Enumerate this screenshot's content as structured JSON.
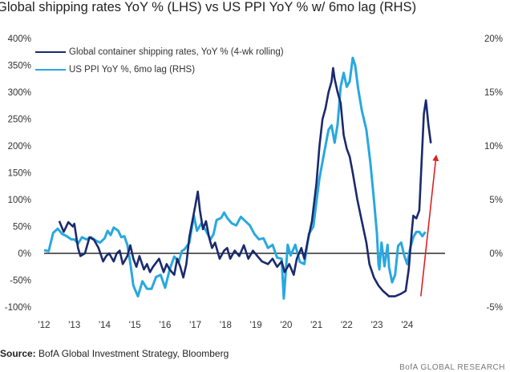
{
  "title": "Global shipping rates YoY % (LHS) vs US PPI YoY % w/ 6mo lag (RHS)",
  "source": {
    "label": "Source:",
    "text": " BofA Global Investment Strategy, Bloomberg"
  },
  "footer": "BofA GLOBAL RESEARCH",
  "colors": {
    "shipping": "#1a2a6c",
    "ppi": "#29a8df",
    "arrow": "#e02020",
    "zero_line": "#000000"
  },
  "chart_data": {
    "type": "line",
    "title": "Global shipping rates YoY % (LHS) vs US PPI YoY % w/ 6mo lag (RHS)",
    "xlabel": "",
    "ylabel_left": "",
    "ylabel_right": "",
    "x_ticks": [
      "'12",
      "'13",
      "'14",
      "'15",
      "'16",
      "'17",
      "'18",
      "'19",
      "'20",
      "'21",
      "'22",
      "'23",
      "'24"
    ],
    "xlim": [
      2012,
      2025.25
    ],
    "y_left_ticks": [
      "400%",
      "350%",
      "300%",
      "250%",
      "200%",
      "150%",
      "100%",
      "50%",
      "0%",
      "-50%",
      "-100%"
    ],
    "ylim_left": [
      -100,
      400
    ],
    "y_right_ticks": [
      "20%",
      "15%",
      "10%",
      "5%",
      "0%",
      "-5%"
    ],
    "ylim_right": [
      -5,
      20
    ],
    "legend_placement": "top-left",
    "grid": false,
    "series": [
      {
        "name": "Global container shipping rates, YoY % (4-wk rolling)",
        "axis": "left",
        "points": [
          [
            2012.5,
            60
          ],
          [
            2012.65,
            40
          ],
          [
            2012.8,
            58
          ],
          [
            2012.95,
            50
          ],
          [
            2013.0,
            55
          ],
          [
            2013.12,
            10
          ],
          [
            2013.2,
            -5
          ],
          [
            2013.35,
            0
          ],
          [
            2013.5,
            30
          ],
          [
            2013.65,
            25
          ],
          [
            2013.8,
            10
          ],
          [
            2013.95,
            -15
          ],
          [
            2014.05,
            -5
          ],
          [
            2014.15,
            0
          ],
          [
            2014.3,
            -15
          ],
          [
            2014.4,
            0
          ],
          [
            2014.5,
            5
          ],
          [
            2014.6,
            -20
          ],
          [
            2014.75,
            -5
          ],
          [
            2014.85,
            15
          ],
          [
            2014.95,
            -10
          ],
          [
            2015.05,
            -25
          ],
          [
            2015.15,
            -5
          ],
          [
            2015.3,
            -30
          ],
          [
            2015.4,
            -20
          ],
          [
            2015.5,
            -35
          ],
          [
            2015.6,
            -25
          ],
          [
            2015.8,
            -10
          ],
          [
            2015.95,
            -35
          ],
          [
            2016.05,
            -20
          ],
          [
            2016.15,
            -30
          ],
          [
            2016.3,
            -40
          ],
          [
            2016.4,
            -10
          ],
          [
            2016.5,
            -25
          ],
          [
            2016.6,
            -45
          ],
          [
            2016.7,
            -20
          ],
          [
            2016.8,
            30
          ],
          [
            2016.9,
            60
          ],
          [
            2017.0,
            90
          ],
          [
            2017.08,
            115
          ],
          [
            2017.15,
            80
          ],
          [
            2017.25,
            45
          ],
          [
            2017.35,
            60
          ],
          [
            2017.45,
            30
          ],
          [
            2017.55,
            10
          ],
          [
            2017.65,
            20
          ],
          [
            2017.8,
            -10
          ],
          [
            2017.95,
            5
          ],
          [
            2018.05,
            10
          ],
          [
            2018.15,
            -10
          ],
          [
            2018.3,
            5
          ],
          [
            2018.45,
            -5
          ],
          [
            2018.6,
            15
          ],
          [
            2018.75,
            -10
          ],
          [
            2018.9,
            5
          ],
          [
            2019.05,
            -5
          ],
          [
            2019.2,
            -15
          ],
          [
            2019.4,
            -20
          ],
          [
            2019.55,
            -10
          ],
          [
            2019.7,
            -25
          ],
          [
            2019.85,
            -15
          ],
          [
            2019.95,
            -35
          ],
          [
            2020.1,
            -20
          ],
          [
            2020.25,
            -40
          ],
          [
            2020.35,
            -10
          ],
          [
            2020.5,
            10
          ],
          [
            2020.6,
            -10
          ],
          [
            2020.7,
            20
          ],
          [
            2020.85,
            60
          ],
          [
            2021.0,
            130
          ],
          [
            2021.1,
            200
          ],
          [
            2021.2,
            250
          ],
          [
            2021.3,
            270
          ],
          [
            2021.4,
            300
          ],
          [
            2021.5,
            320
          ],
          [
            2021.55,
            345
          ],
          [
            2021.6,
            325
          ],
          [
            2021.7,
            300
          ],
          [
            2021.8,
            280
          ],
          [
            2021.9,
            220
          ],
          [
            2022.0,
            195
          ],
          [
            2022.1,
            180
          ],
          [
            2022.2,
            150
          ],
          [
            2022.35,
            100
          ],
          [
            2022.5,
            60
          ],
          [
            2022.65,
            20
          ],
          [
            2022.75,
            -20
          ],
          [
            2022.9,
            -45
          ],
          [
            2023.05,
            -60
          ],
          [
            2023.2,
            -70
          ],
          [
            2023.4,
            -80
          ],
          [
            2023.6,
            -80
          ],
          [
            2023.8,
            -75
          ],
          [
            2023.95,
            -70
          ],
          [
            2024.05,
            -30
          ],
          [
            2024.15,
            40
          ],
          [
            2024.2,
            70
          ],
          [
            2024.3,
            65
          ],
          [
            2024.4,
            80
          ],
          [
            2024.45,
            140
          ],
          [
            2024.55,
            260
          ],
          [
            2024.62,
            285
          ],
          [
            2024.7,
            240
          ],
          [
            2024.78,
            205
          ]
        ]
      },
      {
        "name": "US PPI YoY %, 6mo lag (RHS)",
        "axis": "right",
        "points": [
          [
            2012.0,
            0.3
          ],
          [
            2012.15,
            0.2
          ],
          [
            2012.3,
            1.9
          ],
          [
            2012.45,
            2.3
          ],
          [
            2012.6,
            1.8
          ],
          [
            2012.75,
            1.6
          ],
          [
            2012.9,
            1.3
          ],
          [
            2013.0,
            1.3
          ],
          [
            2013.12,
            0.9
          ],
          [
            2013.25,
            1.5
          ],
          [
            2013.4,
            1.3
          ],
          [
            2013.55,
            1.5
          ],
          [
            2013.7,
            1.2
          ],
          [
            2013.85,
            1.0
          ],
          [
            2014.0,
            1.4
          ],
          [
            2014.1,
            2.1
          ],
          [
            2014.2,
            1.7
          ],
          [
            2014.3,
            2.4
          ],
          [
            2014.45,
            2.1
          ],
          [
            2014.55,
            1.5
          ],
          [
            2014.65,
            1.6
          ],
          [
            2014.75,
            0.8
          ],
          [
            2014.85,
            -0.9
          ],
          [
            2014.95,
            -3.0
          ],
          [
            2015.1,
            -4.0
          ],
          [
            2015.25,
            -2.6
          ],
          [
            2015.4,
            -3.3
          ],
          [
            2015.55,
            -3.3
          ],
          [
            2015.7,
            -2.2
          ],
          [
            2015.85,
            -2.0
          ],
          [
            2016.0,
            -3.2
          ],
          [
            2016.15,
            -1.5
          ],
          [
            2016.3,
            -0.3
          ],
          [
            2016.45,
            -0.8
          ],
          [
            2016.55,
            0.2
          ],
          [
            2016.65,
            0.4
          ],
          [
            2016.8,
            1.0
          ],
          [
            2016.95,
            3.5
          ],
          [
            2017.05,
            2.1
          ],
          [
            2017.2,
            2.8
          ],
          [
            2017.35,
            2.1
          ],
          [
            2017.5,
            1.3
          ],
          [
            2017.6,
            1.8
          ],
          [
            2017.7,
            3.1
          ],
          [
            2017.85,
            3.3
          ],
          [
            2017.95,
            3.8
          ],
          [
            2018.05,
            3.3
          ],
          [
            2018.2,
            2.8
          ],
          [
            2018.35,
            2.6
          ],
          [
            2018.5,
            3.4
          ],
          [
            2018.65,
            3.0
          ],
          [
            2018.8,
            2.6
          ],
          [
            2018.95,
            1.8
          ],
          [
            2019.1,
            1.3
          ],
          [
            2019.25,
            1.4
          ],
          [
            2019.4,
            0.5
          ],
          [
            2019.55,
            0.8
          ],
          [
            2019.7,
            -0.4
          ],
          [
            2019.85,
            -0.5
          ],
          [
            2019.92,
            -4.2
          ],
          [
            2019.98,
            -2.0
          ],
          [
            2020.05,
            0.8
          ],
          [
            2020.15,
            -0.2
          ],
          [
            2020.3,
            0.8
          ],
          [
            2020.45,
            -0.8
          ],
          [
            2020.6,
            -1.0
          ],
          [
            2020.75,
            1.8
          ],
          [
            2020.9,
            2.5
          ],
          [
            2021.0,
            4.8
          ],
          [
            2021.1,
            7.0
          ],
          [
            2021.25,
            9.3
          ],
          [
            2021.4,
            11.5
          ],
          [
            2021.5,
            11.9
          ],
          [
            2021.6,
            10.3
          ],
          [
            2021.7,
            12.0
          ],
          [
            2021.8,
            15.5
          ],
          [
            2021.9,
            16.8
          ],
          [
            2022.0,
            15.5
          ],
          [
            2022.1,
            16.0
          ],
          [
            2022.2,
            18.2
          ],
          [
            2022.28,
            17.5
          ],
          [
            2022.38,
            15.3
          ],
          [
            2022.5,
            13.3
          ],
          [
            2022.65,
            11.5
          ],
          [
            2022.78,
            8.5
          ],
          [
            2022.9,
            5.0
          ],
          [
            2023.0,
            1.8
          ],
          [
            2023.05,
            -1.0
          ],
          [
            2023.08,
            -1.5
          ],
          [
            2023.15,
            1.0
          ],
          [
            2023.25,
            -1.2
          ],
          [
            2023.35,
            0.8
          ],
          [
            2023.4,
            -1.3
          ],
          [
            2023.5,
            -2.7
          ],
          [
            2023.6,
            -2.0
          ],
          [
            2023.7,
            0.7
          ],
          [
            2023.8,
            1.0
          ],
          [
            2023.9,
            -0.2
          ],
          [
            2024.0,
            -1.0
          ],
          [
            2024.1,
            0.5
          ],
          [
            2024.2,
            1.5
          ],
          [
            2024.3,
            2.0
          ],
          [
            2024.4,
            2.0
          ],
          [
            2024.5,
            1.6
          ],
          [
            2024.6,
            2.0
          ]
        ]
      }
    ],
    "annotations": [
      {
        "type": "arrow",
        "from": [
          2024.45,
          -80
        ],
        "to": [
          2024.95,
          178
        ]
      }
    ]
  }
}
